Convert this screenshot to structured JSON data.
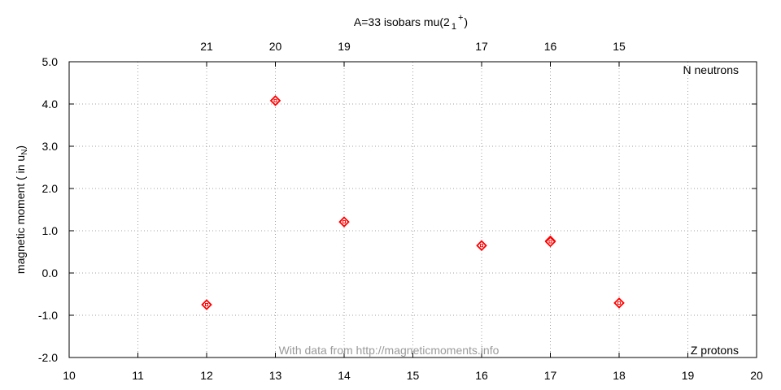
{
  "chart_data": {
    "type": "scatter",
    "title": "A=33 isobars mu(2 1 +)",
    "title_parts": {
      "main": "A=33 isobars mu(2",
      "sub": "1",
      "sup": "+",
      "close": ")"
    },
    "ylabel_parts": {
      "main": "magnetic moment ( in u",
      "sub": "N",
      "close": ")"
    },
    "x_axis_label": "Z protons",
    "top_axis_label": "N neutrons",
    "watermark": "With data from http://magneticmoments.info",
    "xlim": [
      10,
      20
    ],
    "ylim": [
      -2.0,
      5.0
    ],
    "x_ticks": [
      "10",
      "11",
      "12",
      "13",
      "14",
      "15",
      "16",
      "17",
      "18",
      "19",
      "20"
    ],
    "y_ticks": [
      "-2.0",
      "-1.0",
      "0.0",
      "1.0",
      "2.0",
      "3.0",
      "4.0",
      "5.0"
    ],
    "top_ticks": [
      {
        "x": 12,
        "label": "21"
      },
      {
        "x": 13,
        "label": "20"
      },
      {
        "x": 14,
        "label": "19"
      },
      {
        "x": 16,
        "label": "17"
      },
      {
        "x": 17,
        "label": "16"
      },
      {
        "x": 18,
        "label": "15"
      }
    ],
    "grid": true,
    "marker_color": "#ff0000",
    "points": [
      {
        "x": 12,
        "y": -0.75
      },
      {
        "x": 13,
        "y": 4.08
      },
      {
        "x": 14,
        "y": 1.21
      },
      {
        "x": 16,
        "y": 0.65
      },
      {
        "x": 17,
        "y": 0.76
      },
      {
        "x": 17,
        "y": 0.74
      },
      {
        "x": 18,
        "y": -0.71
      }
    ]
  }
}
